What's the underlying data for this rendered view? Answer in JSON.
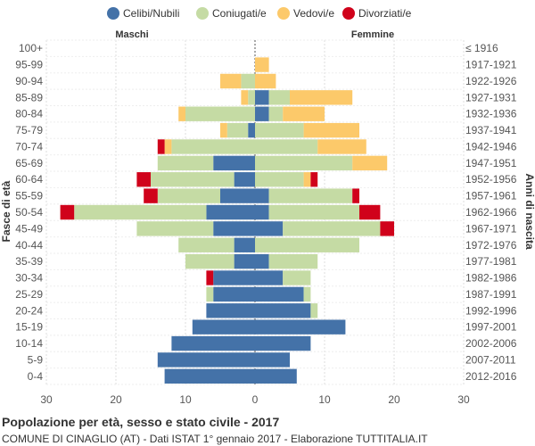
{
  "chart_data": {
    "type": "bar",
    "orientation": "horizontal",
    "title": "Popolazione per età, sesso e stato civile - 2017",
    "subtitle": "COMUNE DI CINAGLIO (AT) - Dati ISTAT 1° gennaio 2017 - Elaborazione TUTTITALIA.IT",
    "left_label": "Maschi",
    "right_label": "Femmine",
    "ylabel_left": "Fasce di età",
    "ylabel_right": "Anni di nascita",
    "xlim": [
      -30,
      30
    ],
    "xticks": [
      -30,
      -20,
      -10,
      0,
      10,
      20,
      30
    ],
    "xtick_labels": [
      "30",
      "20",
      "10",
      "0",
      "10",
      "20",
      "30"
    ],
    "legend_position": "top",
    "grid": true,
    "series_meta": [
      {
        "name": "Celibi/Nubili",
        "color": "#4472a8"
      },
      {
        "name": "Coniugati/e",
        "color": "#c5dba4"
      },
      {
        "name": "Vedovi/e",
        "color": "#fcc96a"
      },
      {
        "name": "Divorziati/e",
        "color": "#d0021b"
      }
    ],
    "categories": [
      "100+",
      "95-99",
      "90-94",
      "85-89",
      "80-84",
      "75-79",
      "70-74",
      "65-69",
      "60-64",
      "55-59",
      "50-54",
      "45-49",
      "40-44",
      "35-39",
      "30-34",
      "25-29",
      "20-24",
      "15-19",
      "10-14",
      "5-9",
      "0-4"
    ],
    "birth_years": [
      "≤ 1916",
      "1917-1921",
      "1922-1926",
      "1927-1931",
      "1932-1936",
      "1937-1941",
      "1942-1946",
      "1947-1951",
      "1952-1956",
      "1957-1961",
      "1962-1966",
      "1967-1971",
      "1972-1976",
      "1977-1981",
      "1982-1986",
      "1987-1991",
      "1992-1996",
      "1997-2001",
      "2002-2006",
      "2007-2011",
      "2012-2016"
    ],
    "males": {
      "Celibi/Nubili": [
        0,
        0,
        0,
        0,
        0,
        1,
        0,
        6,
        3,
        5,
        7,
        6,
        3,
        3,
        6,
        6,
        7,
        9,
        12,
        14,
        13
      ],
      "Coniugati/e": [
        0,
        0,
        2,
        1,
        10,
        3,
        12,
        8,
        12,
        9,
        19,
        11,
        8,
        7,
        0,
        1,
        0,
        0,
        0,
        0,
        0
      ],
      "Vedovi/e": [
        0,
        0,
        3,
        1,
        1,
        1,
        1,
        0,
        0,
        0,
        0,
        0,
        0,
        0,
        0,
        0,
        0,
        0,
        0,
        0,
        0
      ],
      "Divorziati/e": [
        0,
        0,
        0,
        0,
        0,
        0,
        1,
        0,
        2,
        2,
        2,
        0,
        0,
        0,
        1,
        0,
        0,
        0,
        0,
        0,
        0
      ]
    },
    "females": {
      "Celibi/Nubili": [
        0,
        0,
        0,
        2,
        2,
        0,
        0,
        0,
        0,
        2,
        2,
        4,
        0,
        2,
        4,
        7,
        8,
        13,
        8,
        5,
        6
      ],
      "Coniugati/e": [
        0,
        0,
        0,
        3,
        2,
        7,
        9,
        14,
        7,
        12,
        13,
        14,
        15,
        7,
        4,
        1,
        1,
        0,
        0,
        0,
        0
      ],
      "Vedovi/e": [
        0,
        2,
        3,
        9,
        6,
        8,
        7,
        5,
        1,
        0,
        0,
        0,
        0,
        0,
        0,
        0,
        0,
        0,
        0,
        0,
        0
      ],
      "Divorziati/e": [
        0,
        0,
        0,
        0,
        0,
        0,
        0,
        0,
        1,
        1,
        3,
        2,
        0,
        0,
        0,
        0,
        0,
        0,
        0,
        0,
        0
      ]
    }
  }
}
